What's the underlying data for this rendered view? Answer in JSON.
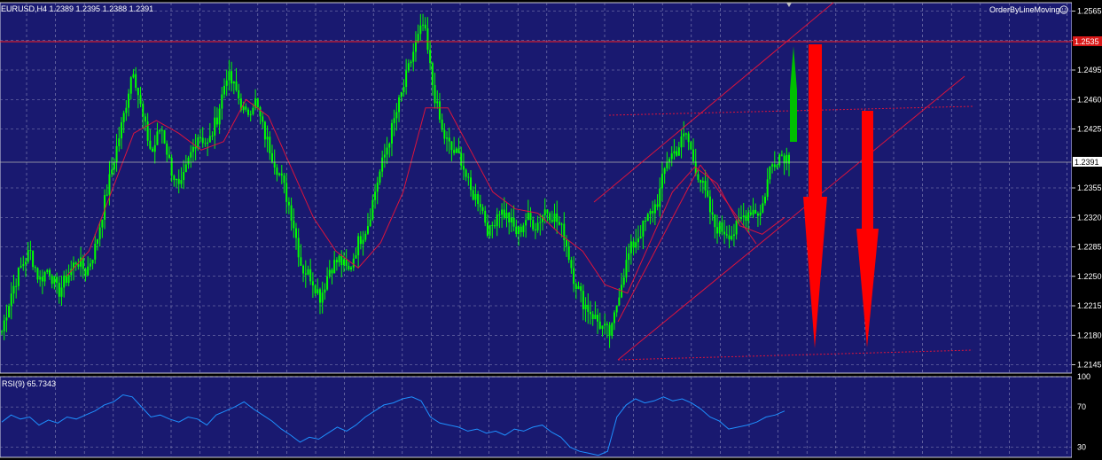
{
  "chart_header": {
    "symbol_line": "EURUSD,H4  1.2389 1.2395 1.2388 1.2391"
  },
  "expert": {
    "name": "OrderByLineMoving",
    "icon": "smiley-icon"
  },
  "price_axis": {
    "ticks": [
      "1.2565",
      "1.2530",
      "1.2495",
      "1.2460",
      "1.2425",
      "1.2355",
      "1.2320",
      "1.2285",
      "1.2250",
      "1.2215",
      "1.2180",
      "1.2145"
    ],
    "current_price": "1.2391",
    "line_price_label": "1.2535"
  },
  "rsi": {
    "label": "RSI(9) 65.7343",
    "ticks": [
      "100",
      "70",
      "30"
    ]
  },
  "colors": {
    "background": "#191970",
    "bull_candle": "#00ff00",
    "moving_average": "#dc143c",
    "rsi_line": "#1e90ff",
    "arrow_up": "#00c000",
    "arrow_down": "#ff0000"
  },
  "chart_data": [
    {
      "type": "line",
      "title": "",
      "subtitle": "EURUSD,H4",
      "ylim": [
        1.2135,
        1.2575
      ],
      "y_ticks": [
        1.2565,
        1.253,
        1.2495,
        1.246,
        1.2425,
        1.2355,
        1.232,
        1.2285,
        1.225,
        1.2215,
        1.218,
        1.2145
      ],
      "series": [
        {
          "values": [
            1.2185,
            1.223,
            1.226,
            1.228,
            1.2245,
            1.226,
            1.223,
            1.225,
            1.227,
            1.2255,
            1.2285,
            1.234,
            1.239,
            1.244,
            1.25,
            1.244,
            1.2395,
            1.243,
            1.238,
            1.235,
            1.239,
            1.242,
            1.2405,
            1.244,
            1.249,
            1.247,
            1.244,
            1.246,
            1.242,
            1.239,
            1.236,
            1.232,
            1.226,
            1.225,
            1.2225,
            1.226,
            1.227,
            1.2255,
            1.229,
            1.231,
            1.236,
            1.24,
            1.244,
            1.248,
            1.252,
            1.255,
            1.2475,
            1.242,
            1.24,
            1.239,
            1.235,
            1.234,
            1.23,
            1.233,
            1.232,
            1.23,
            1.232,
            1.231,
            1.233,
            1.232,
            1.23,
            1.225,
            1.222,
            1.2205,
            1.219,
            1.218,
            1.224,
            1.228,
            1.23,
            1.232,
            1.234,
            1.239,
            1.24,
            1.242,
            1.238,
            1.235,
            1.231,
            1.2305,
            1.23,
            1.232,
            1.233,
            1.2325,
            1.238,
            1.2395,
            1.2391
          ]
        },
        {
          "values": [
            1.225,
            1.228,
            1.235,
            1.242,
            1.2435,
            1.242,
            1.24,
            1.241,
            1.246,
            1.244,
            1.238,
            1.232,
            1.228,
            1.226,
            1.229,
            1.235,
            1.245,
            1.245,
            1.24,
            1.235,
            1.233,
            1.2325,
            1.23,
            1.228,
            1.224,
            1.223,
            1.229,
            1.235,
            1.238,
            1.236,
            1.231,
            1.23,
            1.232
          ]
        }
      ]
    },
    {
      "type": "line",
      "title": "",
      "subtitle": "RSI(9) 65.7343",
      "ylim": [
        20,
        100
      ],
      "y_ticks": [
        100,
        70,
        30
      ],
      "series": [
        {
          "values": [
            55,
            62,
            58,
            60,
            52,
            57,
            54,
            60,
            58,
            62,
            66,
            72,
            75,
            82,
            80,
            70,
            60,
            62,
            58,
            55,
            60,
            58,
            52,
            62,
            66,
            70,
            75,
            68,
            62,
            56,
            48,
            42,
            35,
            40,
            38,
            44,
            50,
            46,
            52,
            60,
            66,
            72,
            74,
            78,
            80,
            76,
            60,
            54,
            52,
            50,
            46,
            48,
            44,
            46,
            42,
            48,
            46,
            50,
            52,
            45,
            40,
            30,
            26,
            24,
            22,
            26,
            60,
            72,
            78,
            74,
            76,
            80,
            76,
            78,
            74,
            68,
            60,
            56,
            48,
            50,
            52,
            55,
            60,
            62,
            66
          ]
        }
      ]
    }
  ]
}
